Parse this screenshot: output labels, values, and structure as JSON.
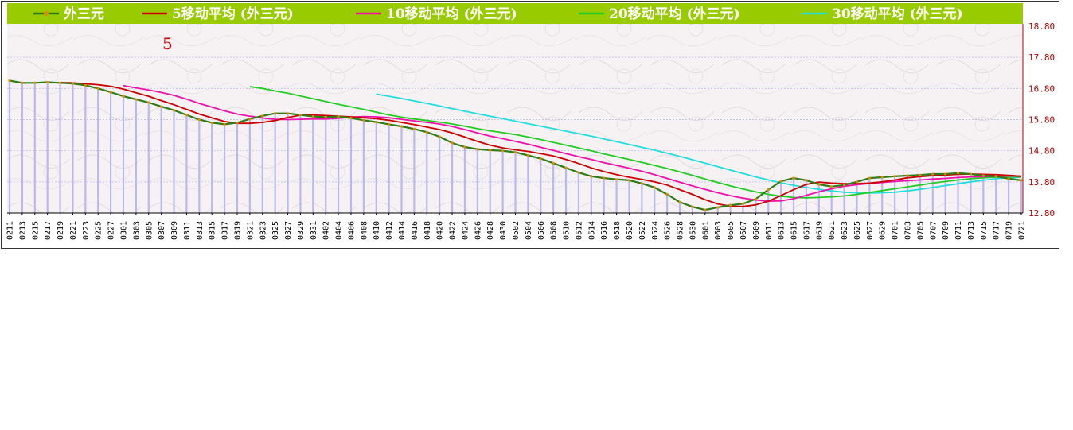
{
  "chart_data": {
    "type": "line",
    "title": "",
    "xlabel": "",
    "ylabel": "",
    "ylim": [
      12.8,
      18.8
    ],
    "yticks": [
      "18.80",
      "17.80",
      "16.80",
      "15.80",
      "14.80",
      "13.80",
      "12.80"
    ],
    "grid": true,
    "legend_placement": "top",
    "annotation": "5",
    "x_ticks": [
      "0211",
      "0213",
      "0215",
      "0217",
      "0219",
      "0221",
      "0223",
      "0225",
      "0227",
      "0301",
      "0303",
      "0305",
      "0307",
      "0309",
      "0311",
      "0313",
      "0315",
      "0317",
      "0319",
      "0321",
      "0323",
      "0325",
      "0327",
      "0329",
      "0331",
      "0402",
      "0404",
      "0406",
      "0408",
      "0410",
      "0412",
      "0414",
      "0416",
      "0418",
      "0420",
      "0422",
      "0424",
      "0426",
      "0428",
      "0430",
      "0502",
      "0504",
      "0506",
      "0508",
      "0510",
      "0512",
      "0514",
      "0516",
      "0518",
      "0520",
      "0522",
      "0524",
      "0526",
      "0528",
      "0530",
      "0601",
      "0603",
      "0605",
      "0607",
      "0609",
      "0611",
      "0613",
      "0615",
      "0617",
      "0619",
      "0621",
      "0623",
      "0625",
      "0627",
      "0629",
      "0701",
      "0703",
      "0705",
      "0707",
      "0709",
      "0711",
      "0713",
      "0715",
      "0717",
      "0719",
      "0721"
    ],
    "series": [
      {
        "name": "外三元",
        "color": "#2e7d1a",
        "values": [
          17.05,
          16.98,
          16.98,
          17.0,
          16.98,
          16.96,
          16.9,
          16.8,
          16.68,
          16.55,
          16.45,
          16.35,
          16.22,
          16.1,
          15.95,
          15.8,
          15.7,
          15.65,
          15.7,
          15.82,
          15.92,
          16.0,
          16.0,
          15.95,
          15.9,
          15.88,
          15.9,
          15.85,
          15.78,
          15.72,
          15.65,
          15.58,
          15.5,
          15.4,
          15.25,
          15.05,
          14.92,
          14.85,
          14.82,
          14.8,
          14.75,
          14.65,
          14.55,
          14.4,
          14.25,
          14.1,
          13.98,
          13.92,
          13.88,
          13.85,
          13.75,
          13.62,
          13.4,
          13.15,
          13.0,
          12.9,
          12.98,
          13.05,
          13.1,
          13.25,
          13.55,
          13.82,
          13.92,
          13.85,
          13.72,
          13.65,
          13.7,
          13.8,
          13.92,
          13.95,
          13.98,
          14.0,
          14.02,
          14.05,
          14.05,
          14.08,
          14.05,
          14.0,
          13.98,
          13.9,
          13.85
        ]
      },
      {
        "name": "5移动平均 (外三元)",
        "color": "#cc0000",
        "values": [
          null,
          null,
          null,
          null,
          16.99,
          16.98,
          16.95,
          16.92,
          16.87,
          16.78,
          16.66,
          16.55,
          16.41,
          16.28,
          16.13,
          15.98,
          15.86,
          15.74,
          15.68,
          15.68,
          15.71,
          15.77,
          15.87,
          15.94,
          15.95,
          15.93,
          15.91,
          15.89,
          15.86,
          15.83,
          15.78,
          15.71,
          15.64,
          15.56,
          15.48,
          15.37,
          15.24,
          15.1,
          14.98,
          14.89,
          14.83,
          14.78,
          14.71,
          14.63,
          14.52,
          14.39,
          14.25,
          14.13,
          14.03,
          13.95,
          13.88,
          13.8,
          13.7,
          13.55,
          13.4,
          13.23,
          13.09,
          13.02,
          13.01,
          13.06,
          13.18,
          13.36,
          13.55,
          13.72,
          13.79,
          13.76,
          13.74,
          13.74,
          13.76,
          13.8,
          13.86,
          13.93,
          13.97,
          14.0,
          14.02,
          14.04,
          14.05,
          14.04,
          14.03,
          14.01,
          13.98
        ]
      },
      {
        "name": "10移动平均 (外三元)",
        "color": "#ee11aa",
        "values": [
          null,
          null,
          null,
          null,
          null,
          null,
          null,
          null,
          null,
          16.89,
          16.82,
          16.75,
          16.67,
          16.58,
          16.46,
          16.32,
          16.2,
          16.08,
          15.98,
          15.91,
          15.85,
          15.81,
          15.8,
          15.81,
          15.82,
          15.82,
          15.84,
          15.88,
          15.9,
          15.89,
          15.86,
          15.81,
          15.76,
          15.71,
          15.66,
          15.58,
          15.48,
          15.37,
          15.27,
          15.19,
          15.1,
          15.01,
          14.91,
          14.81,
          14.71,
          14.61,
          14.52,
          14.42,
          14.33,
          14.24,
          14.14,
          14.03,
          13.91,
          13.79,
          13.67,
          13.56,
          13.45,
          13.36,
          13.28,
          13.22,
          13.18,
          13.19,
          13.26,
          13.37,
          13.48,
          13.58,
          13.66,
          13.71,
          13.75,
          13.78,
          13.81,
          13.84,
          13.86,
          13.89,
          13.91,
          13.94,
          13.96,
          13.97,
          13.98,
          13.99,
          13.98
        ]
      },
      {
        "name": "20移动平均 (外三元)",
        "color": "#22cc22",
        "values": [
          null,
          null,
          null,
          null,
          null,
          null,
          null,
          null,
          null,
          null,
          null,
          null,
          null,
          null,
          null,
          null,
          null,
          null,
          null,
          16.86,
          16.8,
          16.72,
          16.65,
          16.56,
          16.47,
          16.38,
          16.29,
          16.21,
          16.13,
          16.04,
          15.95,
          15.88,
          15.82,
          15.77,
          15.72,
          15.66,
          15.59,
          15.51,
          15.44,
          15.38,
          15.32,
          15.24,
          15.16,
          15.07,
          14.98,
          14.89,
          14.8,
          14.7,
          14.61,
          14.52,
          14.43,
          14.33,
          14.23,
          14.12,
          14.01,
          13.89,
          13.78,
          13.67,
          13.57,
          13.48,
          13.4,
          13.34,
          13.3,
          13.29,
          13.3,
          13.32,
          13.35,
          13.4,
          13.46,
          13.52,
          13.58,
          13.64,
          13.7,
          13.76,
          13.81,
          13.86,
          13.9,
          13.93,
          13.95,
          13.96,
          13.96
        ]
      },
      {
        "name": "30移动平均 (外三元)",
        "color": "#22dddd",
        "values": [
          null,
          null,
          null,
          null,
          null,
          null,
          null,
          null,
          null,
          null,
          null,
          null,
          null,
          null,
          null,
          null,
          null,
          null,
          null,
          null,
          null,
          null,
          null,
          null,
          null,
          null,
          null,
          null,
          null,
          16.62,
          16.55,
          16.48,
          16.4,
          16.32,
          16.24,
          16.15,
          16.07,
          15.99,
          15.91,
          15.83,
          15.75,
          15.67,
          15.59,
          15.51,
          15.43,
          15.35,
          15.27,
          15.18,
          15.09,
          15.0,
          14.91,
          14.82,
          14.72,
          14.62,
          14.51,
          14.4,
          14.29,
          14.18,
          14.07,
          13.96,
          13.86,
          13.77,
          13.69,
          13.62,
          13.56,
          13.51,
          13.47,
          13.45,
          13.44,
          13.45,
          13.47,
          13.51,
          13.56,
          13.62,
          13.68,
          13.74,
          13.8,
          13.85,
          13.9,
          13.93,
          13.95
        ]
      }
    ]
  }
}
